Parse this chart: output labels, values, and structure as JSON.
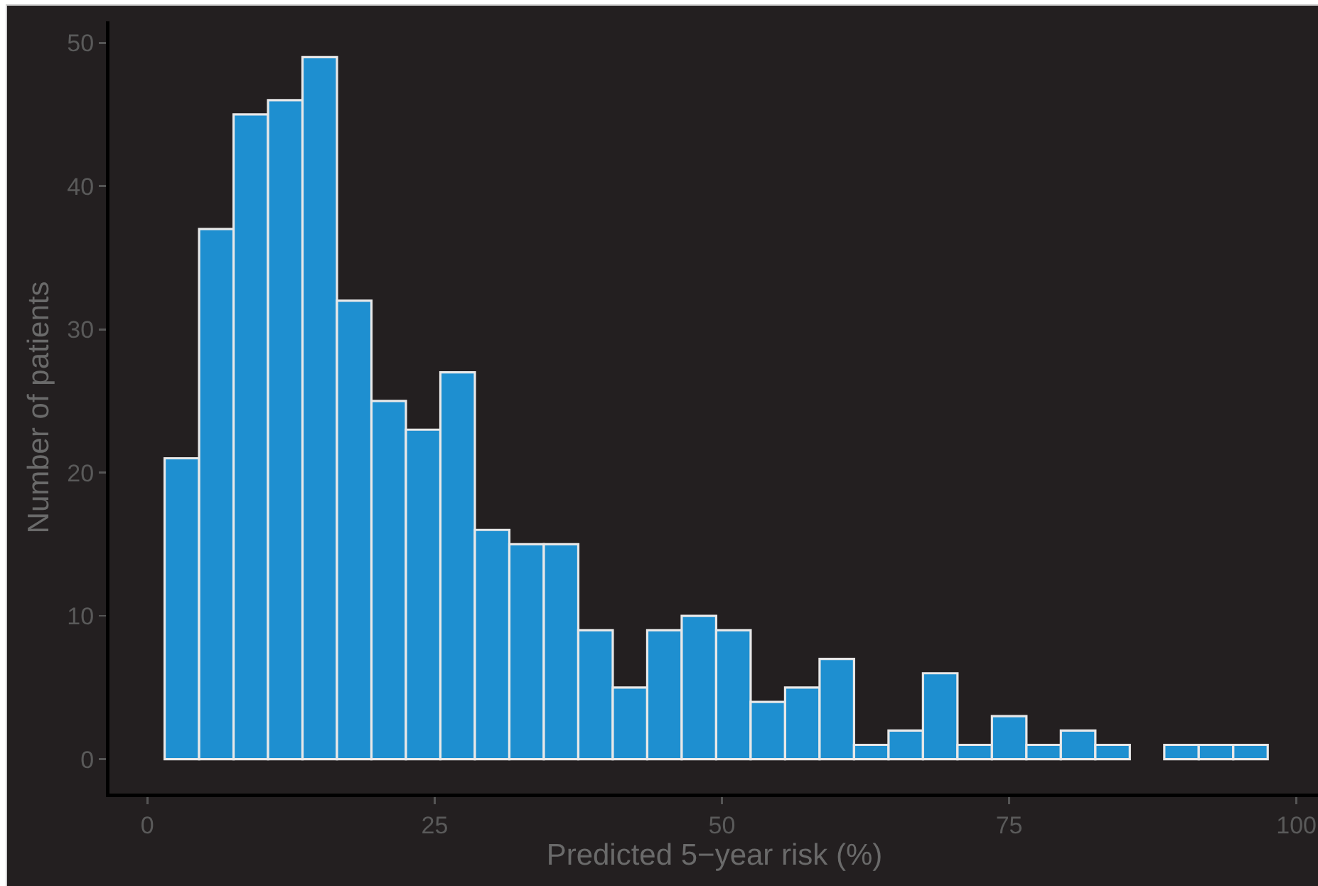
{
  "chart_data": {
    "type": "histogram",
    "xlabel": "Predicted 5−year risk (%)",
    "ylabel": "Number of patients",
    "bins": [
      1.5,
      4.5,
      7.5,
      10.5,
      13.5,
      16.5,
      19.5,
      22.5,
      25.5,
      28.5,
      31.5,
      34.5,
      37.5,
      40.5,
      43.5,
      46.5,
      49.5,
      52.5,
      55.5,
      58.5,
      61.5,
      64.5,
      67.5,
      70.5,
      73.5,
      76.5,
      79.5,
      82.5,
      85.5,
      88.5,
      91.5,
      94.5,
      97.5
    ],
    "values": [
      21,
      37,
      45,
      46,
      49,
      32,
      25,
      23,
      27,
      16,
      15,
      15,
      9,
      5,
      9,
      10,
      9,
      4,
      5,
      7,
      1,
      2,
      6,
      1,
      3,
      1,
      2,
      1,
      0,
      1,
      1,
      1
    ],
    "color": "#1e8fd0",
    "xlim": [
      -3.3,
      102
    ],
    "ylim": [
      -2.4,
      51.5
    ],
    "xticks": [
      0,
      25,
      50,
      75,
      100
    ],
    "yticks": [
      0,
      10,
      20,
      30,
      40,
      50
    ]
  }
}
